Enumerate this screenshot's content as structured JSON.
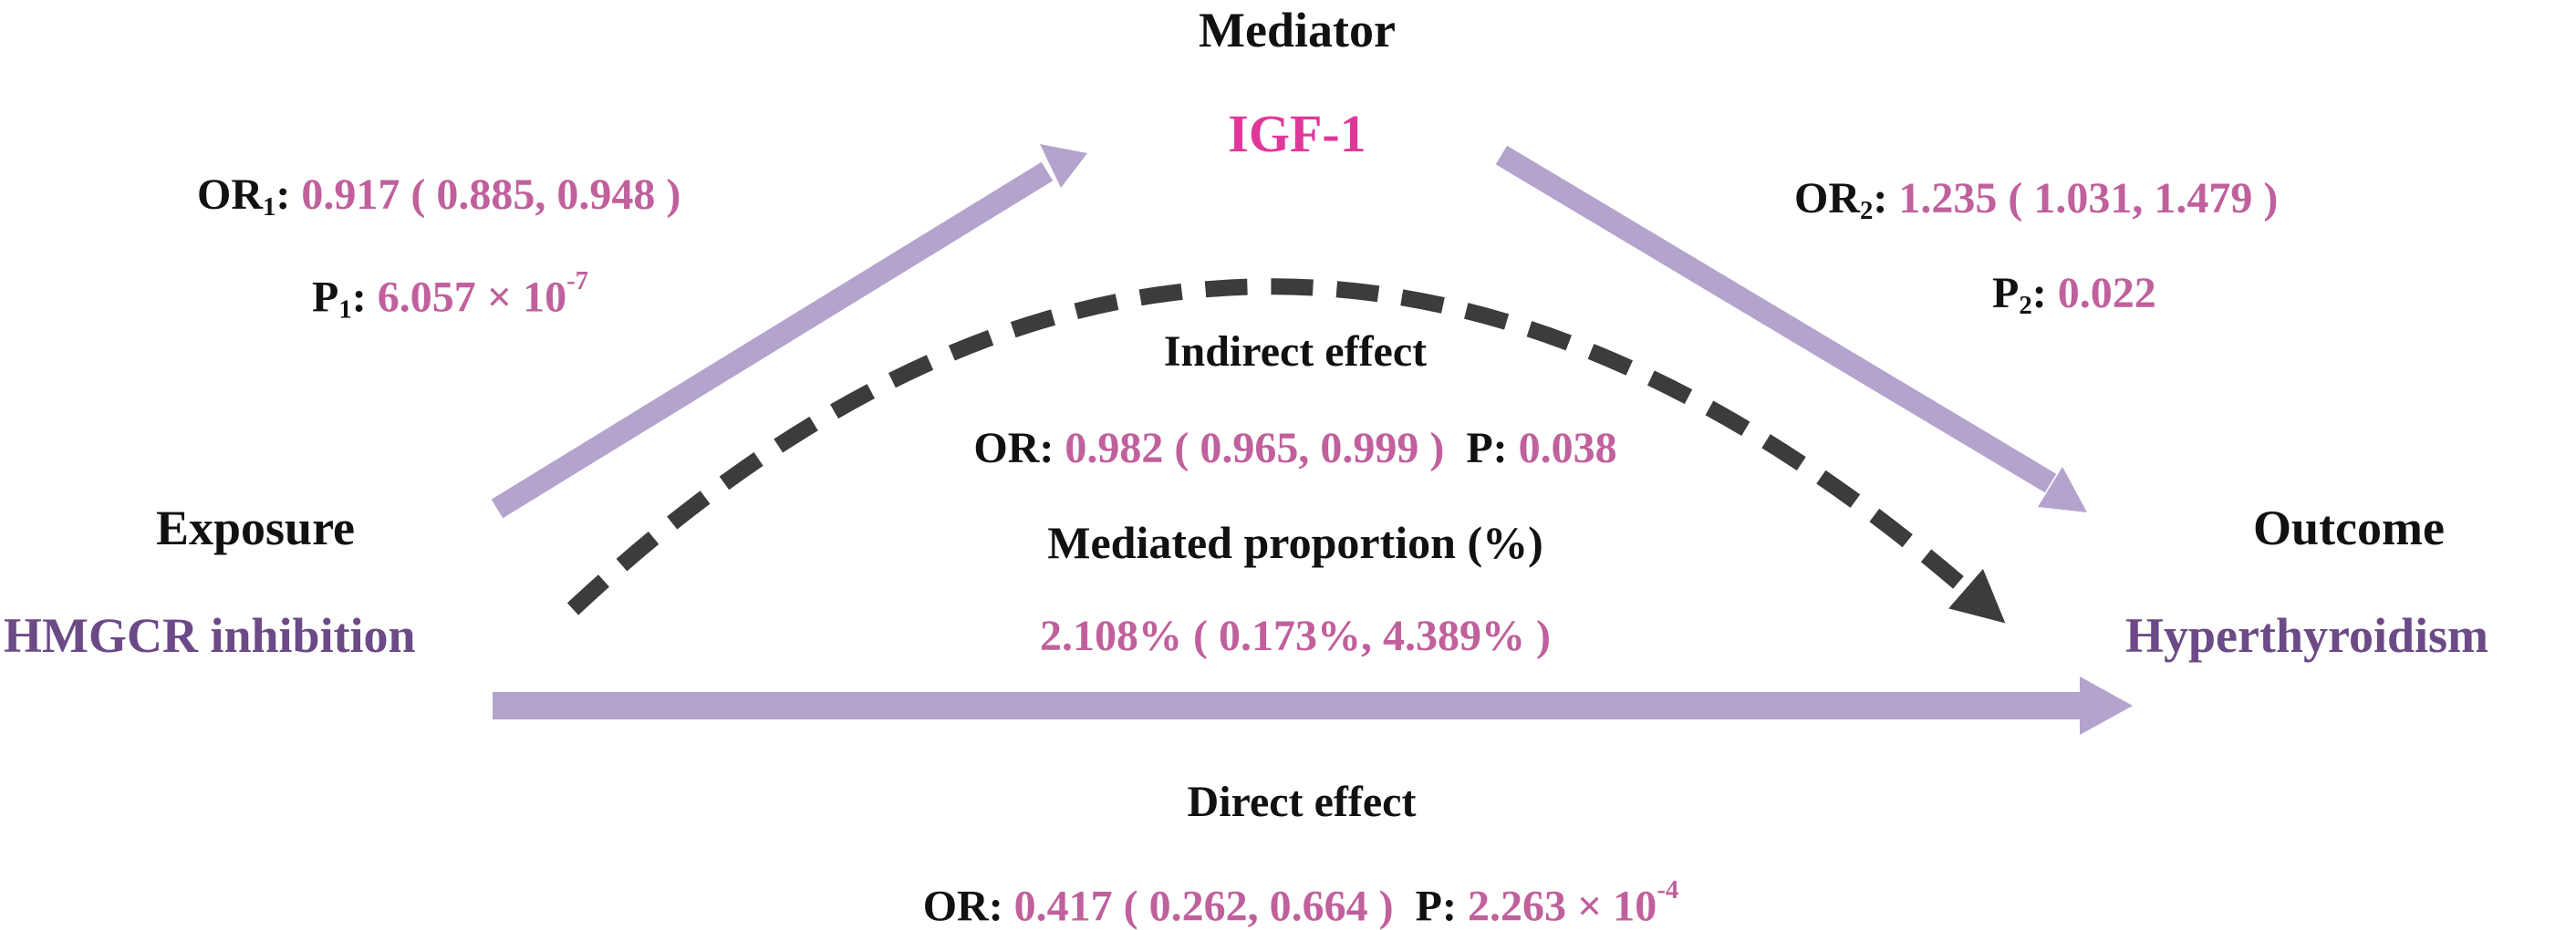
{
  "mediator": {
    "label": "Mediator",
    "name": "IGF-1"
  },
  "exposure": {
    "label": "Exposure",
    "name": "HMGCR inhibition"
  },
  "outcome": {
    "label": "Outcome",
    "name": "Hyperthyroidism"
  },
  "path_a": {
    "or_label": "OR",
    "or_sub": "1",
    "or_value": "0.917 ( 0.885, 0.948 )",
    "p_label": "P",
    "p_sub": "1",
    "p_mantissa": "6.057 × 10",
    "p_exp": "-7"
  },
  "path_b": {
    "or_label": "OR",
    "or_sub": "2",
    "or_value": "1.235 ( 1.031, 1.479 )",
    "p_label": "P",
    "p_sub": "2",
    "p_value": "0.022"
  },
  "indirect": {
    "title": "Indirect effect",
    "or_label": "OR",
    "or_value": "0.982 ( 0.965, 0.999 )",
    "p_label": "P",
    "p_value": "0.038",
    "proportion_title": "Mediated proportion (%)",
    "proportion_value": "2.108% ( 0.173%, 4.389% )"
  },
  "direct": {
    "title": "Direct effect",
    "or_label": "OR",
    "or_value": "0.417 ( 0.262, 0.664 )",
    "p_label": "P",
    "p_mantissa": "2.263 × 10",
    "p_exp": "-4"
  },
  "colors": {
    "arrow": "#b3a3cd",
    "dashed": "#3c3c3c",
    "value": "#c0609c",
    "node": "#6b4a87",
    "mediator": "#e0389a"
  }
}
